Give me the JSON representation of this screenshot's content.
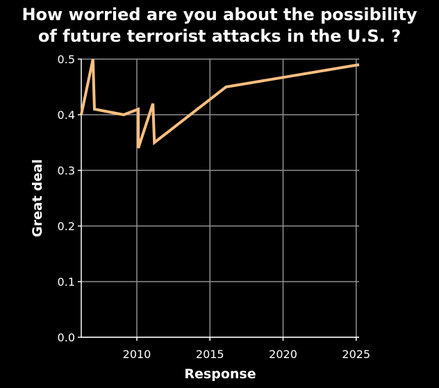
{
  "chart_data": {
    "type": "line",
    "title_lines": [
      "How worried are you about the possibility",
      "of future terrorist attacks in the U.S. ?"
    ],
    "xlabel": "Response",
    "ylabel": "Great deal",
    "xlim": [
      2006.2,
      2025.2
    ],
    "ylim": [
      0.0,
      0.5
    ],
    "xticks": [
      2010,
      2015,
      2020,
      2025
    ],
    "yticks": [
      0.0,
      0.1,
      0.2,
      0.3,
      0.4,
      0.5
    ],
    "ytick_labels": [
      "0.0",
      "0.1",
      "0.2",
      "0.3",
      "0.4",
      "0.5"
    ],
    "grid": true,
    "series": [
      {
        "color": "#fdbf80",
        "x": [
          2006.2,
          2007.0,
          2007.1,
          2009.1,
          2010.1,
          2010.1,
          2011.1,
          2011.2,
          2016.1,
          2025.2
        ],
        "y": [
          0.4,
          0.5,
          0.41,
          0.4,
          0.41,
          0.34,
          0.42,
          0.35,
          0.45,
          0.49
        ]
      }
    ],
    "colors": {
      "background": "#000000",
      "plot_background": "#000000",
      "grid": "#909090",
      "axis": "#ffffff",
      "text": "#ffffff",
      "line": "#fdbf80"
    }
  }
}
